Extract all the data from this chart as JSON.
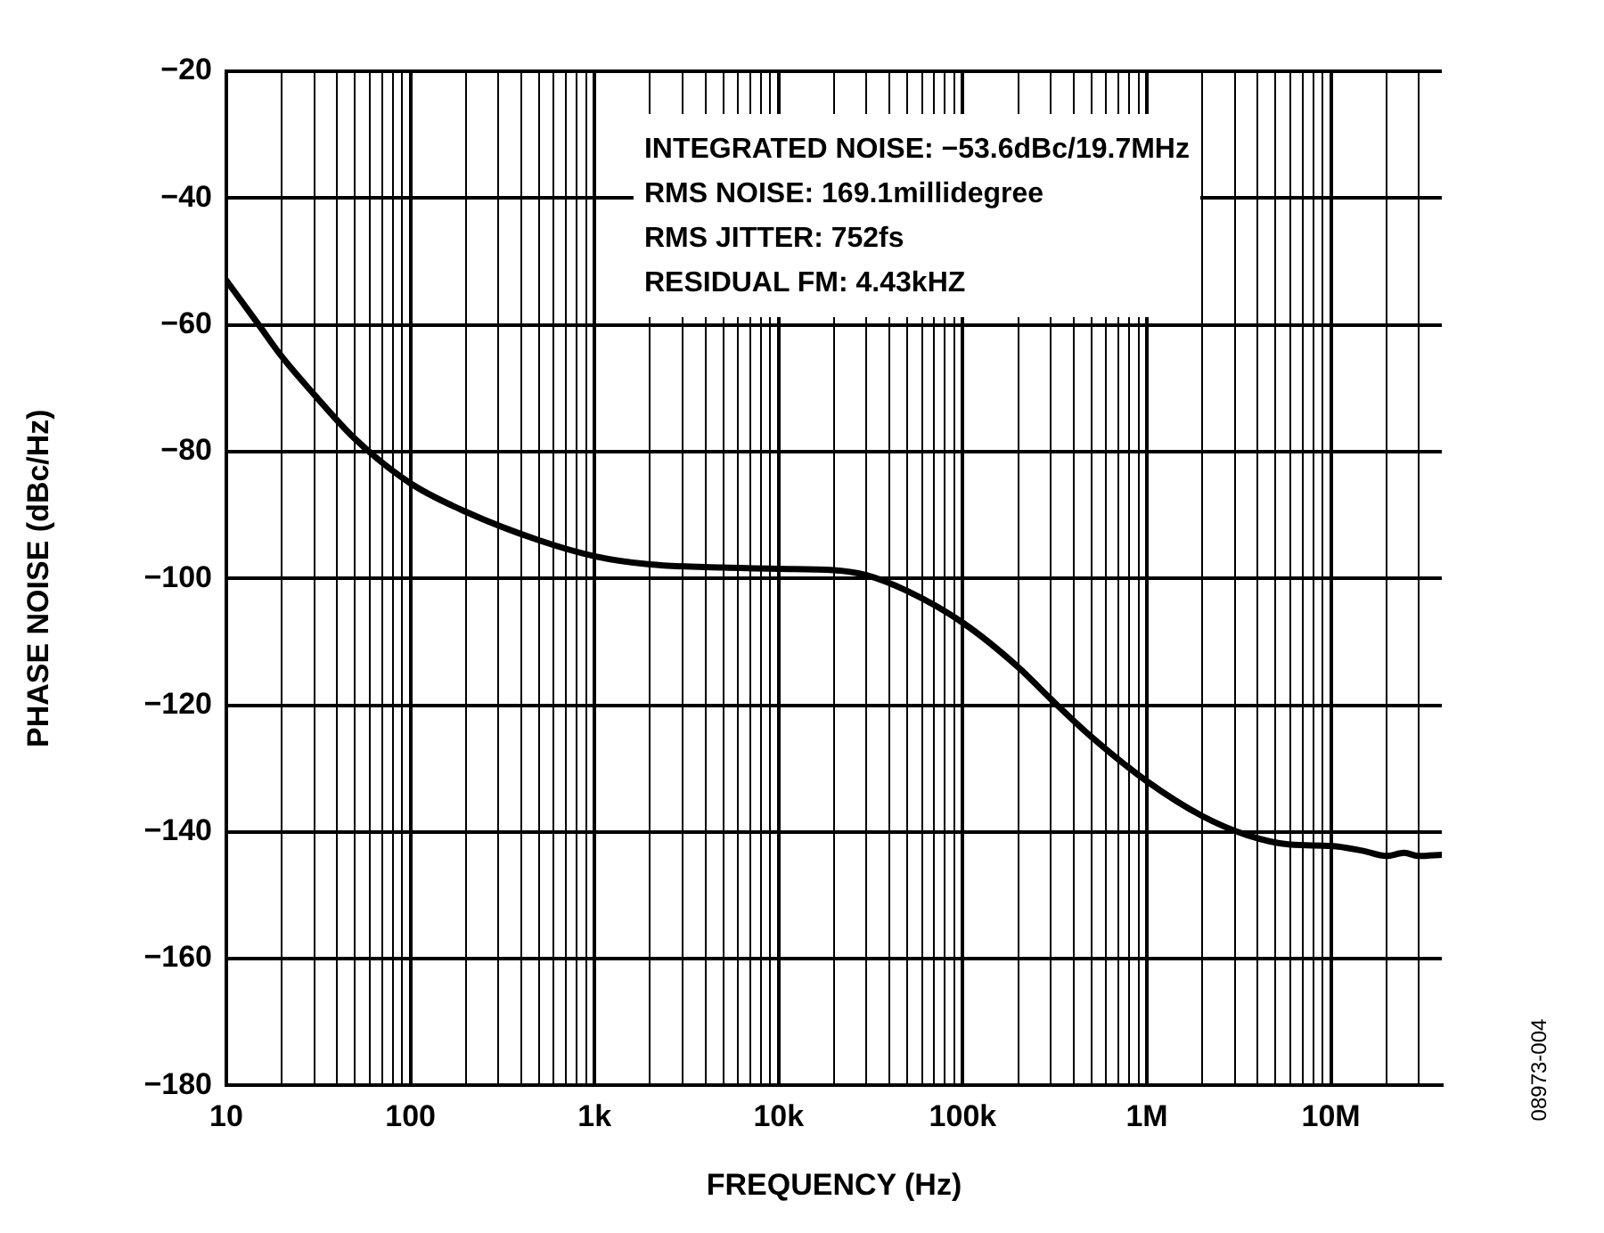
{
  "chart_data": {
    "type": "line",
    "xlabel": "FREQUENCY (Hz)",
    "ylabel": "PHASE NOISE (dBc/Hz)",
    "log": "x",
    "grid": true,
    "legend": false,
    "marker": "none",
    "line_style": "solid",
    "annotations": [
      "INTEGRATED NOISE: −53.6dBc/19.7MHz",
      "RMS NOISE: 169.1millidegree",
      "RMS JITTER: 752fs",
      "RESIDUAL FM: 4.43kHZ",
      "08973-004"
    ],
    "xlim": [
      10,
      40000000
    ],
    "ylim": [
      -180,
      -20
    ],
    "xticks": [
      {
        "value": 10,
        "label": "10"
      },
      {
        "value": 20,
        "label": null
      },
      {
        "value": 30,
        "label": null
      },
      {
        "value": 40,
        "label": null
      },
      {
        "value": 50,
        "label": null
      },
      {
        "value": 60,
        "label": null
      },
      {
        "value": 70,
        "label": null
      },
      {
        "value": 80,
        "label": null
      },
      {
        "value": 90,
        "label": null
      },
      {
        "value": 100,
        "label": "100"
      },
      {
        "value": 200,
        "label": null
      },
      {
        "value": 300,
        "label": null
      },
      {
        "value": 400,
        "label": null
      },
      {
        "value": 500,
        "label": null
      },
      {
        "value": 600,
        "label": null
      },
      {
        "value": 700,
        "label": null
      },
      {
        "value": 800,
        "label": null
      },
      {
        "value": 900,
        "label": null
      },
      {
        "value": 1000,
        "label": "1k"
      },
      {
        "value": 2000,
        "label": null
      },
      {
        "value": 3000,
        "label": null
      },
      {
        "value": 4000,
        "label": null
      },
      {
        "value": 5000,
        "label": null
      },
      {
        "value": 6000,
        "label": null
      },
      {
        "value": 7000,
        "label": null
      },
      {
        "value": 8000,
        "label": null
      },
      {
        "value": 9000,
        "label": null
      },
      {
        "value": 10000,
        "label": "10k"
      },
      {
        "value": 20000,
        "label": null
      },
      {
        "value": 30000,
        "label": null
      },
      {
        "value": 40000,
        "label": null
      },
      {
        "value": 50000,
        "label": null
      },
      {
        "value": 60000,
        "label": null
      },
      {
        "value": 70000,
        "label": null
      },
      {
        "value": 80000,
        "label": null
      },
      {
        "value": 90000,
        "label": null
      },
      {
        "value": 100000,
        "label": "100k"
      },
      {
        "value": 200000,
        "label": null
      },
      {
        "value": 300000,
        "label": null
      },
      {
        "value": 400000,
        "label": null
      },
      {
        "value": 500000,
        "label": null
      },
      {
        "value": 600000,
        "label": null
      },
      {
        "value": 700000,
        "label": null
      },
      {
        "value": 800000,
        "label": null
      },
      {
        "value": 900000,
        "label": null
      },
      {
        "value": 1000000,
        "label": "1M"
      },
      {
        "value": 2000000,
        "label": null
      },
      {
        "value": 3000000,
        "label": null
      },
      {
        "value": 4000000,
        "label": null
      },
      {
        "value": 5000000,
        "label": null
      },
      {
        "value": 6000000,
        "label": null
      },
      {
        "value": 7000000,
        "label": null
      },
      {
        "value": 8000000,
        "label": null
      },
      {
        "value": 9000000,
        "label": null
      },
      {
        "value": 10000000,
        "label": "10M"
      },
      {
        "value": 20000000,
        "label": null
      },
      {
        "value": 30000000,
        "label": null
      }
    ],
    "yticks": [
      {
        "value": -20,
        "label": "−20"
      },
      {
        "value": -40,
        "label": "−40"
      },
      {
        "value": -60,
        "label": "−60"
      },
      {
        "value": -80,
        "label": "−80"
      },
      {
        "value": -100,
        "label": "−100"
      },
      {
        "value": -120,
        "label": "−120"
      },
      {
        "value": -140,
        "label": "−140"
      },
      {
        "value": -160,
        "label": "−160"
      },
      {
        "value": -180,
        "label": "−180"
      }
    ],
    "series": [
      {
        "color": "#000000",
        "x": [
          10,
          15,
          20,
          30,
          50,
          100,
          200,
          500,
          1000,
          2000,
          5000,
          10000,
          20000,
          30000,
          50000,
          100000,
          200000,
          300000,
          500000,
          1000000,
          2000000,
          3500000,
          6000000,
          10000000,
          15000000,
          20000000,
          25000000,
          30000000,
          40000000
        ],
        "values": [
          -53,
          -60,
          -65,
          -71,
          -78,
          -85,
          -89.5,
          -94,
          -96.5,
          -97.8,
          -98.3,
          -98.5,
          -98.7,
          -99.5,
          -102,
          -107,
          -114,
          -119,
          -125,
          -132,
          -137.5,
          -140.5,
          -142,
          -142.2,
          -143,
          -143.8,
          -143.3,
          -143.8,
          -143.6
        ]
      }
    ]
  }
}
